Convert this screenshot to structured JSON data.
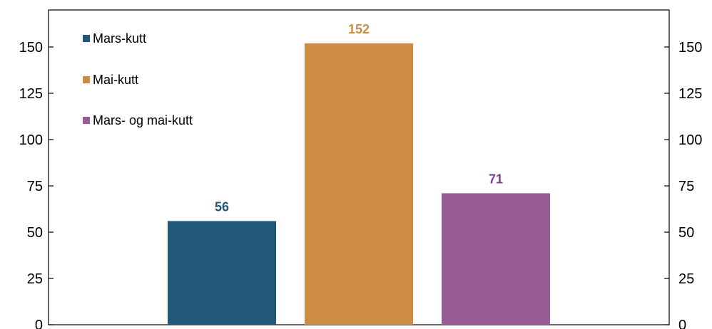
{
  "chart_data": {
    "type": "bar",
    "categories": [
      "Mars-kutt",
      "Mai-kutt",
      "Mars- og mai-kutt"
    ],
    "values": [
      56,
      152,
      71
    ],
    "series": [
      {
        "name": "Mars-kutt",
        "value": 56,
        "color": "#225877",
        "label_color": "#225877"
      },
      {
        "name": "Mai-kutt",
        "value": 152,
        "color": "#CE8C42",
        "label_color": "#CE8C42"
      },
      {
        "name": "Mars- og mai-kutt",
        "value": 71,
        "color": "#975C95",
        "label_color": "#7D3C98"
      }
    ],
    "ylim": [
      0,
      170
    ],
    "yticks": [
      0,
      25,
      50,
      75,
      100,
      125,
      150
    ],
    "secondary_yticks": [
      0,
      25,
      50,
      75,
      100,
      125,
      150
    ],
    "legend_position": "top-left",
    "grid": false,
    "data_labels": [
      "56",
      "152",
      "71"
    ]
  }
}
